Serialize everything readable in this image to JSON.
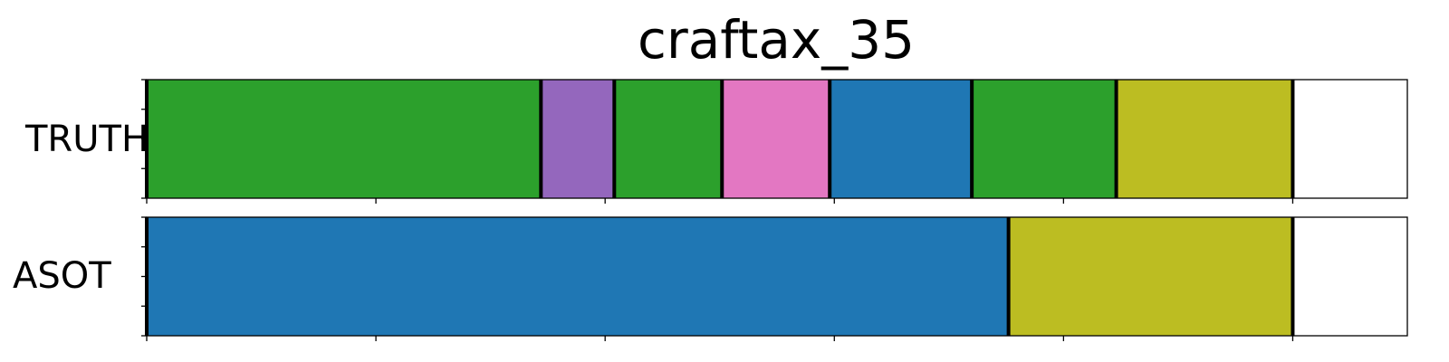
{
  "chart_data": {
    "type": "segmentation",
    "title": "craftax_35",
    "xlim": [
      0,
      5.5
    ],
    "tick_positions": [
      0,
      1,
      2,
      3,
      4,
      5
    ],
    "tick_labels_visible": false,
    "rows": [
      {
        "label": "TRUTH",
        "segments": [
          {
            "start": 0.0,
            "end": 1.72,
            "color": "#2ca02c"
          },
          {
            "start": 1.72,
            "end": 2.04,
            "color": "#9467bd"
          },
          {
            "start": 2.04,
            "end": 2.51,
            "color": "#2ca02c"
          },
          {
            "start": 2.51,
            "end": 2.98,
            "color": "#e377c2"
          },
          {
            "start": 2.98,
            "end": 3.6,
            "color": "#1f77b4"
          },
          {
            "start": 3.6,
            "end": 4.23,
            "color": "#2ca02c"
          },
          {
            "start": 4.23,
            "end": 5.0,
            "color": "#bcbd22"
          }
        ]
      },
      {
        "label": "ASOT",
        "segments": [
          {
            "start": 0.0,
            "end": 3.76,
            "color": "#1f77b4"
          },
          {
            "start": 3.76,
            "end": 5.0,
            "color": "#bcbd22"
          }
        ]
      }
    ]
  }
}
